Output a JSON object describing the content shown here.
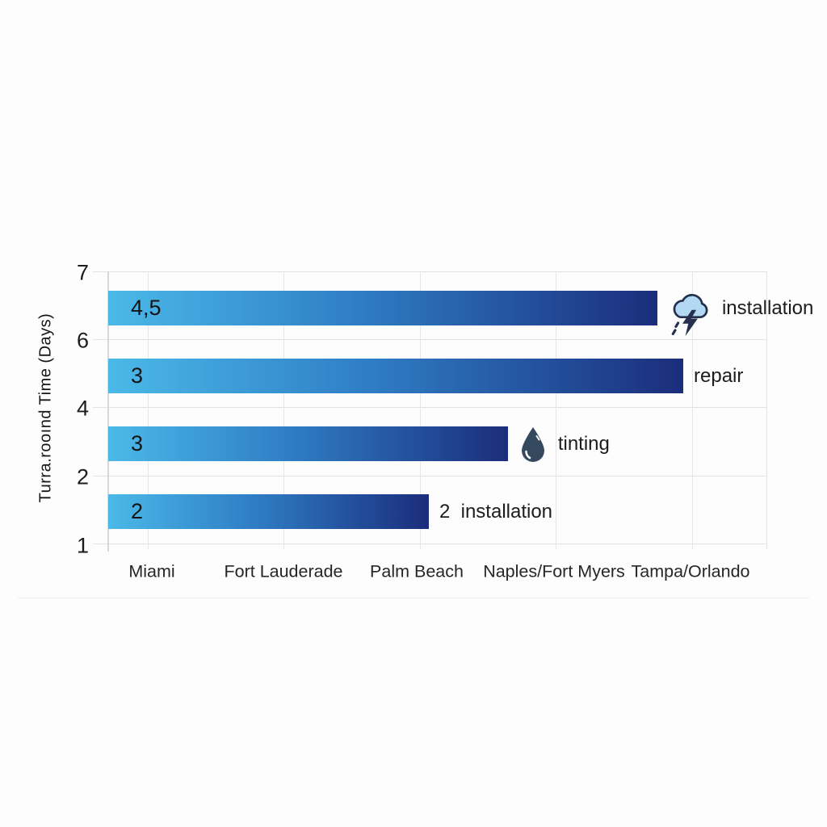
{
  "chart_data": {
    "type": "bar",
    "orientation": "horizontal",
    "title": "",
    "ylabel": "Turra.rooınd Time (Days)",
    "xlabel": "",
    "x_axis_categories": [
      "Miami",
      "Fort Lauderade",
      "Palm Beach",
      "Naples/Fort Myers",
      "Tampa/Orlando"
    ],
    "y_axis_tick_labels": [
      "7",
      "6",
      "4",
      "2",
      "1"
    ],
    "grid": true,
    "legend": false,
    "bars": [
      {
        "value_label": "4,5",
        "value": 4.5,
        "label": "installation",
        "icon": "storm-cloud",
        "length_pct": 76.4
      },
      {
        "value_label": "3",
        "value": 3,
        "label": "repair",
        "icon": "",
        "length_pct": 80.0
      },
      {
        "value_label": "3",
        "value": 3,
        "label": "tinting",
        "icon": "water-drop",
        "length_pct": 55.6
      },
      {
        "value_label": "2",
        "value": 2,
        "label": "2  installation",
        "icon": "",
        "length_pct": 44.6
      }
    ],
    "colors": {
      "bar_gradient_start": "#4BB9E8",
      "bar_gradient_mid": "#2F7EC5",
      "bar_gradient_end": "#1B2D7C",
      "cloud_fill": "#B3D9F2",
      "icon_outline": "#25304F",
      "drop_fill": "#35495E",
      "gridline": "#E3E3E3",
      "axis_line": "#D8D8D8",
      "text": "#1F1F1F"
    }
  }
}
